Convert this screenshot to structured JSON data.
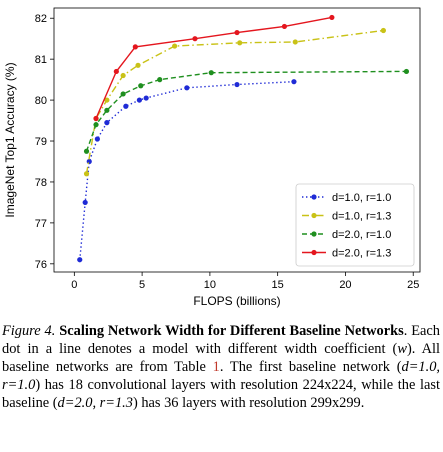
{
  "chart_data": {
    "type": "line",
    "xlabel": "FLOPS (billions)",
    "ylabel": "ImageNet Top1 Accuracy (%)",
    "xlim": [
      -1.5,
      25.5
    ],
    "ylim": [
      75.8,
      82.25
    ],
    "xticks": [
      0,
      5,
      10,
      15,
      20,
      25
    ],
    "yticks": [
      76,
      77,
      78,
      79,
      80,
      81,
      82
    ],
    "grid": false,
    "legend_position": "lower-right",
    "series": [
      {
        "name": "d=1.0, r=1.0",
        "color": "#1f2bd6",
        "dash": "dotted",
        "x": [
          0.4,
          0.8,
          1.1,
          1.7,
          2.4,
          3.8,
          4.8,
          5.3,
          8.3,
          12.0,
          16.2
        ],
        "y": [
          76.1,
          77.5,
          78.5,
          79.05,
          79.45,
          79.85,
          80.0,
          80.05,
          80.3,
          80.38,
          80.45
        ]
      },
      {
        "name": "d=1.0, r=1.3",
        "color": "#c9c217",
        "dash": "dashdot",
        "x": [
          0.9,
          1.6,
          2.4,
          3.6,
          4.7,
          7.4,
          12.2,
          16.3,
          22.8
        ],
        "y": [
          78.2,
          79.55,
          80.0,
          80.6,
          80.85,
          81.32,
          81.4,
          81.42,
          81.7
        ]
      },
      {
        "name": "d=2.0, r=1.0",
        "color": "#1f8f1f",
        "dash": "dashed",
        "x": [
          0.9,
          1.6,
          2.4,
          3.6,
          4.9,
          6.3,
          10.1,
          24.5
        ],
        "y": [
          78.75,
          79.4,
          79.75,
          80.15,
          80.35,
          80.5,
          80.67,
          80.7
        ]
      },
      {
        "name": "d=2.0, r=1.3",
        "color": "#e4161e",
        "dash": "solid",
        "x": [
          1.6,
          3.1,
          4.5,
          8.9,
          12.0,
          15.5,
          19.0
        ],
        "y": [
          79.55,
          80.7,
          81.3,
          81.5,
          81.65,
          81.8,
          82.02
        ]
      }
    ]
  },
  "caption": {
    "figure_number": "Figure 4.",
    "title": "Scaling Network Width for Different Baseline Networks",
    "text_1": ". Each dot in a line denotes a model with different width coefficient (",
    "w": "w",
    "text_2": "). All baseline networks are from Table ",
    "table_ref": "1",
    "text_3": ". The first baseline network (",
    "first_baseline": "d=1.0, r=1.0",
    "text_4": ") has 18 convolutional layers with resolution 224x224, while the last baseline (",
    "last_baseline": "d=2.0, r=1.3",
    "text_5": ") has 36 layers with resolution 299x299."
  }
}
